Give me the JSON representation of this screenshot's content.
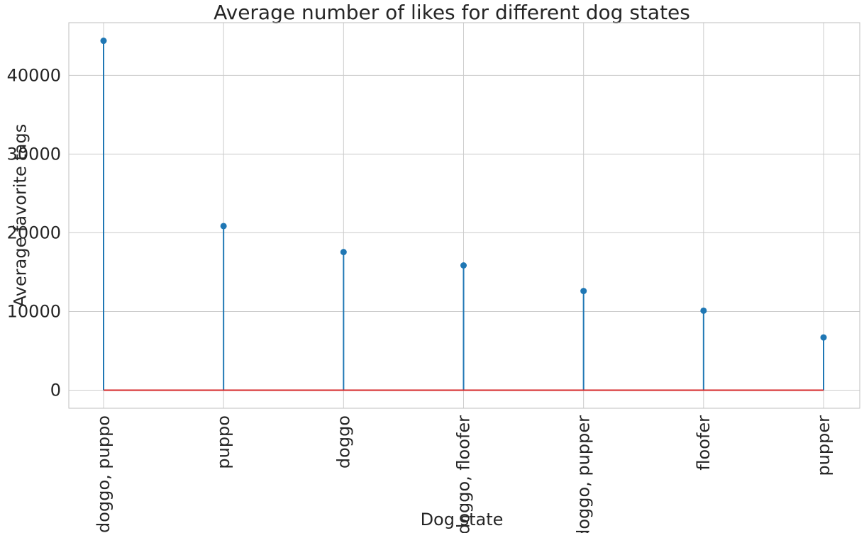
{
  "chart_data": {
    "type": "stem",
    "title": "Average number of likes for different dog states",
    "xlabel": "Dog state",
    "ylabel": "Average favorite tags",
    "categories": [
      "doggo, puppo",
      "puppo",
      "doggo",
      "doggo, floofer",
      "doggo, pupper",
      "floofer",
      "pupper"
    ],
    "values": [
      44400,
      20850,
      17550,
      15850,
      12600,
      10100,
      6700
    ],
    "yticks": [
      0,
      10000,
      20000,
      30000,
      40000
    ],
    "ylim": [
      -2300,
      46700
    ],
    "grid": true,
    "colors": {
      "stem": "#1f77b4",
      "baseline": "#d62728",
      "grid": "#cccccc",
      "spine": "#bfbfbf"
    }
  }
}
